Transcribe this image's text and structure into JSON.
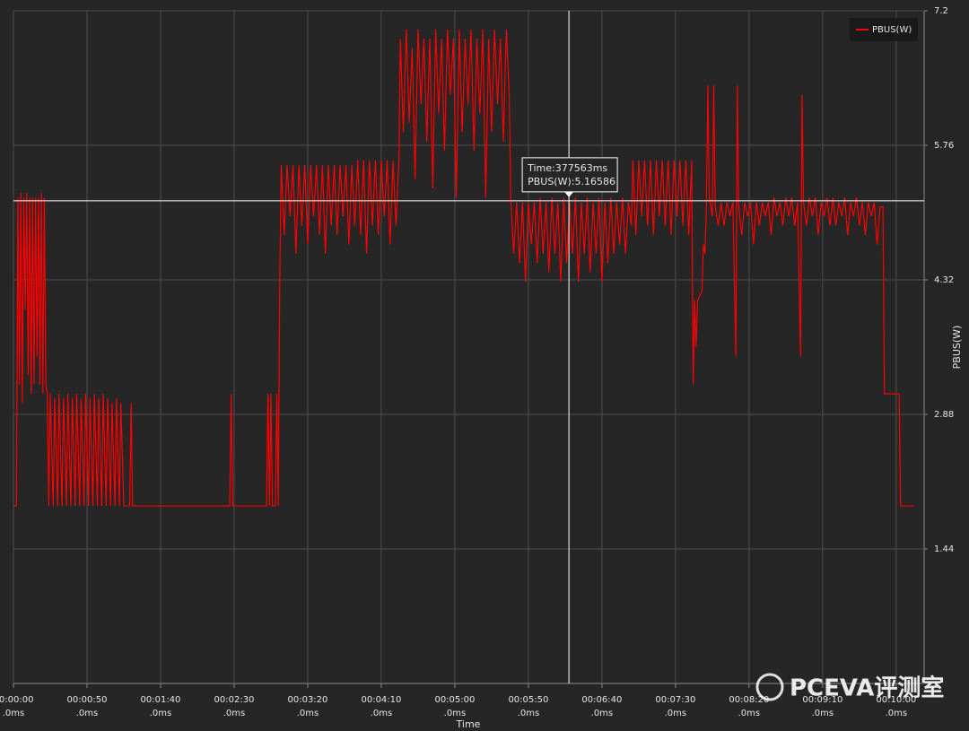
{
  "chart_data": {
    "type": "line",
    "x_label": "Time",
    "y_label": "PBUS(W)",
    "legend": "top-right",
    "grid": true,
    "xlim": [
      0,
      619
    ],
    "ylim": [
      0,
      7.2
    ],
    "yticks": [
      1.44,
      2.88,
      4.32,
      5.76,
      7.2
    ],
    "xticks": [
      {
        "value": 0,
        "label": [
          "00:00:00",
          ".0ms"
        ]
      },
      {
        "value": 50,
        "label": [
          "00:00:50",
          ".0ms"
        ]
      },
      {
        "value": 100,
        "label": [
          "00:01:40",
          ".0ms"
        ]
      },
      {
        "value": 150,
        "label": [
          "00:02:30",
          ".0ms"
        ]
      },
      {
        "value": 200,
        "label": [
          "00:03:20",
          ".0ms"
        ]
      },
      {
        "value": 250,
        "label": [
          "00:04:10",
          ".0ms"
        ]
      },
      {
        "value": 300,
        "label": [
          "00:05:00",
          ".0ms"
        ]
      },
      {
        "value": 350,
        "label": [
          "00:05:50",
          ".0ms"
        ]
      },
      {
        "value": 400,
        "label": [
          "00:06:40",
          ".0ms"
        ]
      },
      {
        "value": 450,
        "label": [
          "00:07:30",
          ".0ms"
        ]
      },
      {
        "value": 500,
        "label": [
          "00:08:20",
          ".0ms"
        ]
      },
      {
        "value": 550,
        "label": [
          "00:09:10",
          ".0ms"
        ]
      },
      {
        "value": 600,
        "label": [
          "00:10:00",
          ".0ms"
        ]
      }
    ],
    "cursor": {
      "x": 377.563,
      "y": 5.16586,
      "labels": [
        "Time:377563ms",
        "PBUS(W):5.16586"
      ]
    },
    "watermark": "PCEVA评测室",
    "series": [
      {
        "name": "PBUS(W)",
        "color": "#ff0000",
        "x": [
          0,
          2,
          3,
          4,
          5,
          6,
          7,
          8,
          9,
          10,
          11,
          12,
          13,
          14,
          15,
          16,
          17,
          18,
          19,
          20,
          21,
          22,
          23,
          24,
          25,
          27,
          28,
          30,
          31,
          33,
          34,
          36,
          37,
          39,
          40,
          42,
          43,
          45,
          46,
          48,
          49,
          51,
          52,
          54,
          55,
          57,
          58,
          60,
          61,
          63,
          64,
          66,
          67,
          69,
          70,
          72,
          73,
          75,
          79,
          80,
          81,
          147,
          148,
          149,
          172,
          173,
          174,
          175,
          176,
          178,
          179,
          180,
          181,
          182,
          184,
          186,
          188,
          190,
          192,
          194,
          196,
          198,
          200,
          202,
          204,
          206,
          208,
          210,
          212,
          214,
          216,
          218,
          220,
          222,
          224,
          226,
          228,
          230,
          232,
          234,
          236,
          238,
          240,
          242,
          244,
          246,
          248,
          250,
          252,
          254,
          256,
          258,
          260,
          262,
          263,
          265,
          267,
          269,
          271,
          273,
          275,
          277,
          279,
          281,
          283,
          285,
          287,
          289,
          291,
          293,
          295,
          297,
          299,
          301,
          303,
          305,
          307,
          309,
          311,
          313,
          315,
          317,
          319,
          321,
          323,
          325,
          327,
          329,
          331,
          333,
          335,
          337,
          338,
          340,
          342,
          344,
          346,
          348,
          350,
          352,
          354,
          356,
          358,
          360,
          362,
          364,
          366,
          368,
          370,
          372,
          374,
          376,
          378,
          380,
          382,
          384,
          386,
          388,
          390,
          392,
          394,
          396,
          398,
          400,
          402,
          404,
          406,
          408,
          410,
          412,
          414,
          416,
          418,
          420,
          421,
          423,
          425,
          427,
          429,
          431,
          433,
          435,
          437,
          439,
          441,
          443,
          445,
          447,
          449,
          451,
          453,
          455,
          457,
          459,
          461,
          462,
          463,
          464,
          465,
          468,
          469,
          470,
          471,
          472,
          473,
          475,
          476,
          477,
          479,
          481,
          483,
          485,
          487,
          489,
          491,
          492,
          493,
          495,
          497,
          499,
          501,
          503,
          505,
          507,
          509,
          511,
          513,
          515,
          517,
          519,
          521,
          523,
          525,
          527,
          529,
          531,
          533,
          535,
          536,
          537,
          539,
          541,
          543,
          545,
          547,
          549,
          551,
          553,
          555,
          557,
          559,
          561,
          563,
          565,
          567,
          569,
          571,
          573,
          575,
          577,
          579,
          581,
          583,
          585,
          587,
          589,
          591,
          592,
          602,
          603,
          612
        ],
        "values": [
          1.9,
          1.9,
          5.2,
          3.2,
          5.25,
          3.0,
          5.2,
          4.0,
          5.25,
          3.3,
          5.2,
          3.1,
          5.2,
          3.2,
          5.2,
          3.5,
          5.2,
          3.2,
          5.25,
          3.1,
          5.2,
          3.2,
          3.1,
          1.9,
          3.1,
          1.9,
          3.05,
          1.9,
          3.1,
          1.9,
          3.05,
          1.9,
          3.1,
          1.9,
          3.05,
          1.9,
          3.1,
          1.9,
          3.05,
          1.9,
          3.1,
          1.9,
          3.05,
          1.9,
          3.1,
          1.9,
          3.05,
          1.9,
          3.1,
          1.9,
          3.05,
          1.9,
          3.0,
          1.9,
          3.05,
          1.9,
          3.0,
          1.9,
          1.9,
          3.0,
          1.9,
          1.9,
          3.1,
          1.9,
          1.9,
          3.1,
          1.9,
          3.1,
          1.9,
          1.9,
          3.1,
          1.9,
          4.3,
          5.55,
          4.8,
          5.55,
          5.0,
          5.55,
          4.6,
          5.55,
          4.9,
          5.55,
          4.7,
          5.55,
          5.0,
          5.55,
          4.8,
          5.55,
          4.6,
          5.55,
          4.9,
          5.55,
          4.8,
          5.55,
          5.0,
          5.55,
          4.7,
          5.55,
          4.9,
          5.6,
          4.8,
          5.6,
          4.6,
          5.6,
          4.9,
          5.6,
          4.8,
          5.6,
          5.0,
          5.6,
          4.7,
          5.6,
          4.9,
          5.6,
          6.9,
          5.9,
          7.0,
          6.0,
          6.8,
          5.4,
          7.0,
          6.2,
          6.9,
          5.8,
          6.9,
          5.3,
          7.0,
          6.1,
          6.9,
          5.7,
          7.0,
          6.3,
          6.9,
          5.2,
          7.0,
          5.9,
          6.9,
          6.2,
          7.0,
          5.7,
          6.9,
          6.1,
          7.0,
          5.2,
          6.9,
          5.9,
          7.0,
          6.2,
          6.9,
          5.8,
          7.0,
          6.3,
          5.2,
          4.6,
          5.15,
          4.5,
          5.15,
          4.3,
          5.15,
          4.7,
          5.15,
          4.5,
          5.2,
          4.6,
          5.15,
          4.4,
          5.2,
          4.6,
          5.15,
          4.3,
          5.2,
          4.5,
          5.15,
          4.6,
          5.2,
          4.3,
          5.15,
          4.6,
          5.2,
          4.4,
          5.15,
          4.6,
          5.2,
          4.3,
          5.15,
          4.5,
          5.2,
          4.6,
          5.15,
          4.7,
          5.2,
          4.6,
          5.15,
          4.9,
          5.6,
          4.8,
          5.6,
          5.0,
          5.6,
          4.9,
          5.6,
          4.8,
          5.6,
          5.0,
          5.6,
          4.9,
          5.6,
          4.8,
          5.6,
          5.0,
          5.6,
          4.9,
          5.6,
          4.8,
          5.6,
          3.2,
          4.1,
          3.6,
          4.1,
          4.2,
          4.7,
          4.6,
          5.1,
          6.4,
          5.2,
          5.0,
          6.4,
          5.1,
          4.9,
          5.15,
          4.9,
          5.15,
          5.0,
          5.15,
          3.5,
          6.4,
          5.1,
          4.8,
          5.15,
          5.0,
          5.15,
          4.7,
          5.15,
          4.9,
          5.15,
          5.0,
          5.15,
          4.8,
          5.2,
          5.0,
          5.15,
          4.9,
          5.2,
          5.0,
          5.2,
          4.9,
          5.15,
          3.5,
          6.3,
          5.15,
          4.9,
          5.2,
          5.0,
          5.2,
          4.8,
          5.15,
          5.0,
          5.2,
          4.9,
          5.2,
          4.9,
          5.15,
          5.0,
          5.2,
          4.8,
          5.15,
          5.0,
          5.2,
          4.9,
          5.15,
          4.8,
          5.15,
          5.0,
          5.15,
          4.7,
          5.1,
          5.1,
          3.1,
          3.1,
          1.9,
          1.9
        ]
      }
    ]
  }
}
